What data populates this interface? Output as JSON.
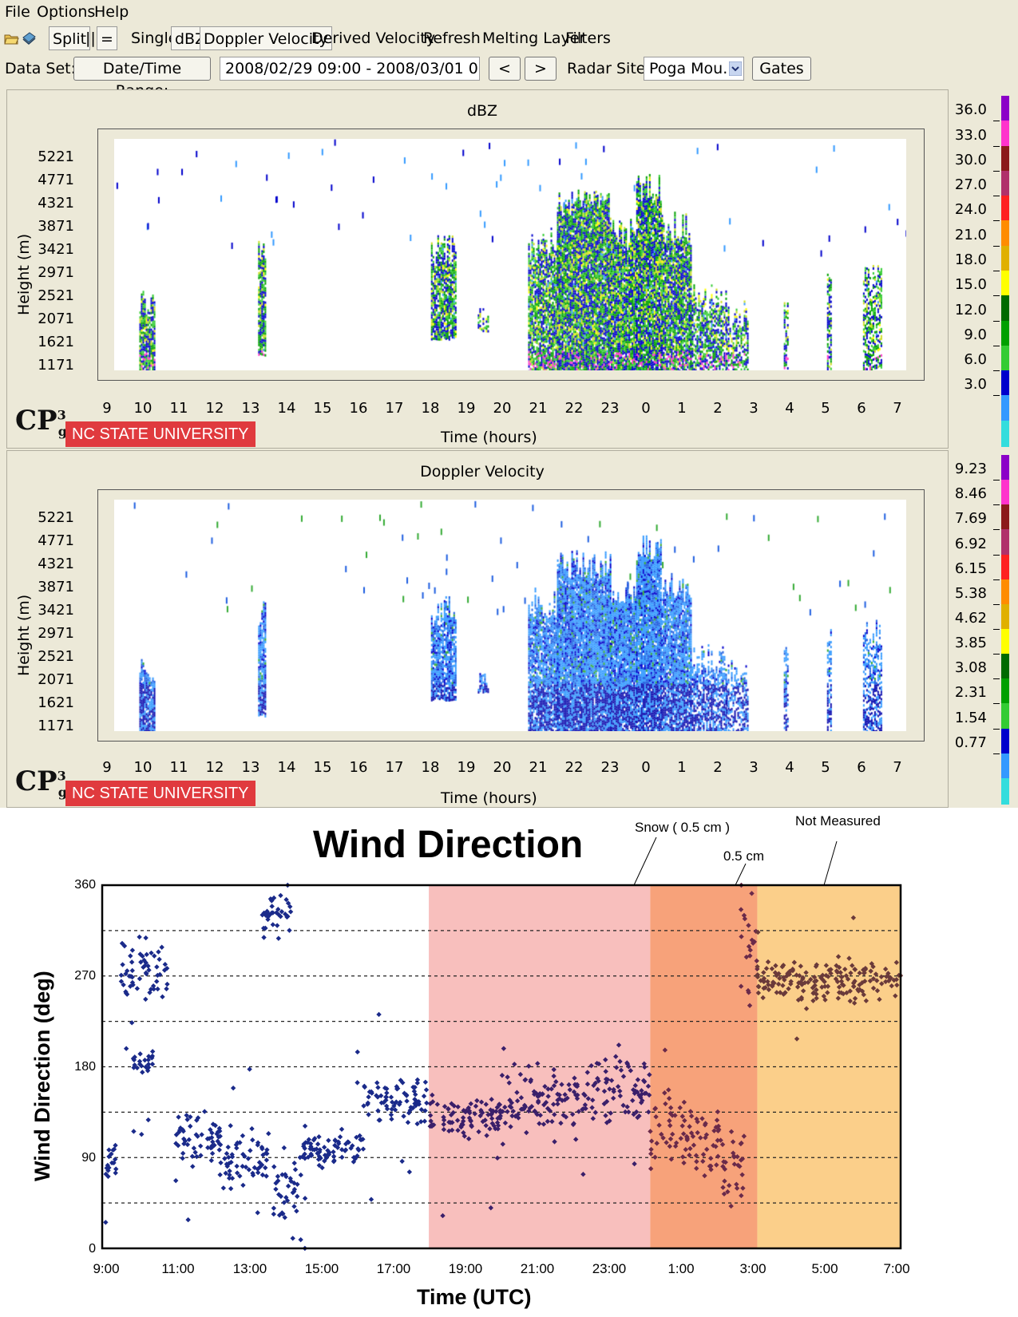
{
  "menu": {
    "items": [
      "File",
      "Options",
      "Help"
    ]
  },
  "toolbar": {
    "split_label": "Split",
    "vertical_label": "||",
    "horizontal_label": "=",
    "single_label": "Single",
    "dbz_label": "dBZ",
    "doppler_label": "Doppler Velocity",
    "derived_label": "Derived Velocity",
    "refresh_label": "Refresh",
    "melting_label": "Melting Layer",
    "filters_label": "Filters",
    "icons": [
      "open-folder-icon",
      "save-disk-icon"
    ]
  },
  "dataset": {
    "label": "Data Set:",
    "range_button": "Date/Time Range:",
    "range_value": "2008/02/29 09:00 - 2008/03/01 07:00",
    "prev_label": "<",
    "next_label": ">",
    "radar_label": "Radar Site:",
    "radar_value": "Poga Mou...",
    "gates_label": "Gates"
  },
  "logo": {
    "cp": "CP",
    "sup": "3",
    "sub": "g",
    "university": "NC STATE UNIVERSITY"
  },
  "panels": [
    {
      "title": "dBZ",
      "ylabel": "Height (m)",
      "xlabel": "Time (hours)",
      "yticks": [
        "5221",
        "4771",
        "4321",
        "3871",
        "3421",
        "2971",
        "2521",
        "2071",
        "1621",
        "1171"
      ],
      "xticks": [
        "9",
        "10",
        "11",
        "12",
        "13",
        "14",
        "15",
        "16",
        "17",
        "18",
        "19",
        "20",
        "21",
        "22",
        "23",
        "0",
        "1",
        "2",
        "3",
        "4",
        "5",
        "6",
        "7"
      ],
      "colorbar_ticks": [
        "36.0",
        "33.0",
        "30.0",
        "27.0",
        "24.0",
        "21.0",
        "18.0",
        "15.0",
        "12.0",
        "9.0",
        "6.0",
        "3.0"
      ],
      "colorbar_colors": [
        "#8b00c8",
        "#ff33cc",
        "#8b1a1a",
        "#b0306a",
        "#ff2020",
        "#ff8c00",
        "#e0b000",
        "#ffff00",
        "#006a00",
        "#00a000",
        "#33cc33",
        "#0000cc",
        "#3399ff",
        "#33dddd"
      ]
    },
    {
      "title": "Doppler Velocity",
      "ylabel": "Height (m)",
      "xlabel": "Time (hours)",
      "yticks": [
        "5221",
        "4771",
        "4321",
        "3871",
        "3421",
        "2971",
        "2521",
        "2071",
        "1621",
        "1171"
      ],
      "xticks": [
        "9",
        "10",
        "11",
        "12",
        "13",
        "14",
        "15",
        "16",
        "17",
        "18",
        "19",
        "20",
        "21",
        "22",
        "23",
        "0",
        "1",
        "2",
        "3",
        "4",
        "5",
        "6",
        "7"
      ],
      "colorbar_ticks": [
        "9.23",
        "8.46",
        "7.69",
        "6.92",
        "6.15",
        "5.38",
        "4.62",
        "3.85",
        "3.08",
        "2.31",
        "1.54",
        "0.77"
      ],
      "colorbar_colors": [
        "#8b00c8",
        "#ff33cc",
        "#8b1a1a",
        "#b0306a",
        "#ff2020",
        "#ff8c00",
        "#e0b000",
        "#ffff00",
        "#006a00",
        "#00a000",
        "#33cc33",
        "#0000cc",
        "#3399ff",
        "#33dddd"
      ]
    }
  ],
  "chart_data": {
    "type": "scatter",
    "title": "Wind Direction",
    "xlabel": "Time (UTC)",
    "ylabel": "Wind Direction (deg)",
    "xticks": [
      "9:00",
      "11:00",
      "13:00",
      "15:00",
      "17:00",
      "19:00",
      "21:00",
      "23:00",
      "1:00",
      "3:00",
      "5:00",
      "7:00"
    ],
    "yticks": [
      "360",
      "270",
      "180",
      "90",
      "0"
    ],
    "ylim": [
      0,
      360
    ],
    "x_hours_range": [
      9,
      31
    ],
    "gridlines_deg": [
      45,
      90,
      135,
      180,
      225,
      270,
      315
    ],
    "regions": [
      {
        "from": 18,
        "to": 24.1,
        "color": "#f8bfbd"
      },
      {
        "from": 24.1,
        "to": 27.05,
        "color": "#f7a27a"
      },
      {
        "from": 27.05,
        "to": 31,
        "color": "#fbcf8a"
      }
    ],
    "annotations": [
      {
        "text": "Snow ( 0.5 cm )"
      },
      {
        "text": "0.5 cm"
      },
      {
        "text": "Not Measured"
      }
    ],
    "point_colors": {
      "before": "#1a2a8a",
      "rain": "#3a1f6a",
      "snow": "#6a2a4a",
      "late": "#6a3a3a"
    },
    "segments": [
      {
        "from": 9.0,
        "to": 9.4,
        "center": 88,
        "spread": 14
      },
      {
        "from": 9.5,
        "to": 10.8,
        "center": 275,
        "spread": 22
      },
      {
        "from": 9.8,
        "to": 10.4,
        "center": 185,
        "spread": 10
      },
      {
        "from": 11.0,
        "to": 12.3,
        "center": 110,
        "spread": 18
      },
      {
        "from": 12.2,
        "to": 13.6,
        "center": 90,
        "spread": 20
      },
      {
        "from": 13.4,
        "to": 14.2,
        "center": 330,
        "spread": 18
      },
      {
        "from": 13.7,
        "to": 14.6,
        "center": 65,
        "spread": 30
      },
      {
        "from": 14.5,
        "to": 16.2,
        "center": 100,
        "spread": 12
      },
      {
        "from": 16.2,
        "to": 18.0,
        "center": 145,
        "spread": 20
      },
      {
        "from": 18.0,
        "to": 20.0,
        "center": 130,
        "spread": 14
      },
      {
        "from": 20.0,
        "to": 22.0,
        "center": 145,
        "spread": 22
      },
      {
        "from": 22.0,
        "to": 24.1,
        "center": 160,
        "spread": 24
      },
      {
        "from": 24.1,
        "to": 26.0,
        "center": 115,
        "spread": 25
      },
      {
        "from": 26.0,
        "to": 26.7,
        "center": 80,
        "spread": 30
      },
      {
        "from": 26.6,
        "to": 27.1,
        "center": 300,
        "spread": 30
      },
      {
        "from": 27.05,
        "to": 31.0,
        "center": 265,
        "spread": 14
      }
    ]
  }
}
